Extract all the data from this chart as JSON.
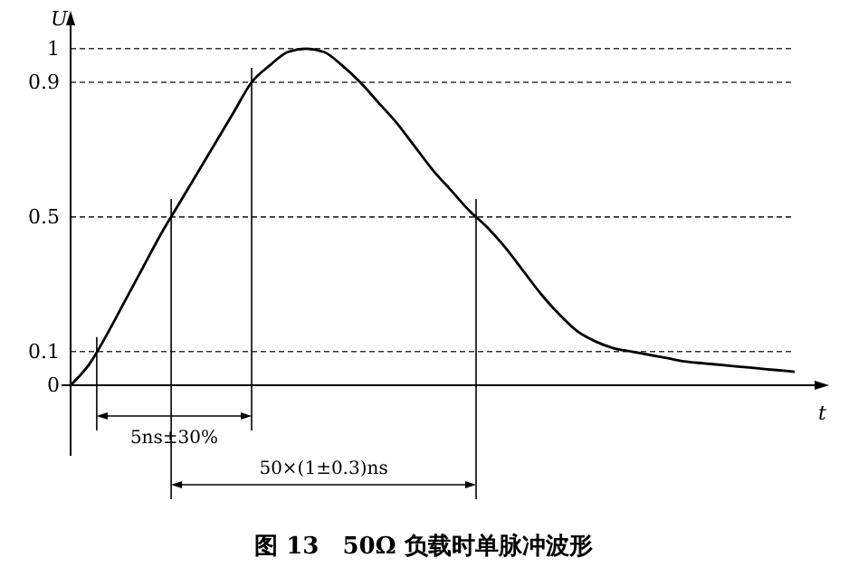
{
  "chart_data": {
    "type": "line",
    "title": "图 13　50Ω 负载时单脉冲波形",
    "xlabel": "t",
    "ylabel": "U",
    "categories": [
      null,
      null,
      null,
      null,
      null,
      null,
      null,
      null,
      null,
      null,
      null,
      null,
      null,
      null,
      null,
      null,
      null,
      null,
      null,
      null,
      null,
      null,
      null,
      null,
      null,
      null,
      null,
      null,
      null,
      null,
      null,
      null,
      null,
      null,
      null,
      null,
      null,
      null,
      null,
      null,
      null
    ],
    "series": [
      {
        "color": "#000000",
        "values": [
          0,
          0.06,
          0.15,
          0.25,
          0.35,
          0.45,
          0.54,
          0.63,
          0.72,
          0.81,
          0.9,
          0.95,
          0.99,
          1.0,
          0.99,
          0.95,
          0.9,
          0.84,
          0.78,
          0.71,
          0.64,
          0.58,
          0.52,
          0.47,
          0.41,
          0.34,
          0.27,
          0.21,
          0.16,
          0.13,
          0.11,
          0.1,
          0.09,
          0.08,
          0.07,
          0.065,
          0.06,
          0.055,
          0.05,
          0.045,
          0.04
        ]
      }
    ],
    "ylim": [
      0,
      1.08
    ],
    "yticks": [
      0,
      0.1,
      0.5,
      0.9,
      1
    ],
    "ref_lines": [
      {
        "axis": "y",
        "value": 0.1,
        "line_style": "dashed"
      },
      {
        "axis": "y",
        "value": 0.5,
        "line_style": "dashed"
      },
      {
        "axis": "y",
        "value": 0.9,
        "line_style": "dashed"
      },
      {
        "axis": "y",
        "value": 1,
        "line_style": "dashed"
      }
    ],
    "annotations": [
      "5ns±30%",
      "50×(1±0.3)ns"
    ],
    "marker": "none",
    "tick_labels": "y"
  }
}
